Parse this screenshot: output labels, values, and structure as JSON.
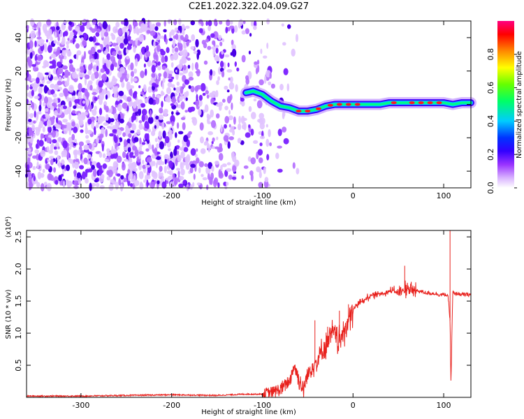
{
  "title": "C2E1.2022.322.04.09.G27",
  "chart_data": [
    {
      "type": "heatmap",
      "xlabel": "Height of straight line (km)",
      "ylabel": "Frequency (Hz)",
      "xlim": [
        -360,
        130
      ],
      "ylim": [
        -50,
        50
      ],
      "x_ticks": [
        -300,
        -200,
        -100,
        0,
        100
      ],
      "y_ticks": [
        -40,
        -20,
        0,
        20,
        40
      ],
      "colorbar": {
        "label": "Normalized spectral amplitude",
        "range": [
          0.0,
          1.0
        ],
        "ticks": [
          0.0,
          0.2,
          0.4,
          0.6,
          0.8
        ],
        "colors": [
          "#ffffff",
          "#b84cff",
          "#4c00ff",
          "#0000ff",
          "#00ccff",
          "#00ff66",
          "#66ff00",
          "#ffff00",
          "#ff8800",
          "#ff0000",
          "#ff0080"
        ]
      },
      "noise_region_x": [
        -360,
        -100
      ],
      "signal_trace": {
        "x": [
          -118,
          -110,
          -100,
          -90,
          -80,
          -70,
          -60,
          -50,
          -40,
          -30,
          -20,
          -10,
          0,
          10,
          20,
          30,
          40,
          50,
          60,
          70,
          80,
          90,
          100,
          110,
          120,
          130
        ],
        "y": [
          7,
          8,
          6,
          2,
          -1,
          -2,
          -4,
          -4,
          -3,
          -1,
          0,
          0,
          0,
          0,
          0,
          0,
          1,
          1,
          1,
          1,
          1,
          1,
          1,
          0,
          1,
          1
        ]
      }
    },
    {
      "type": "line",
      "xlabel": "Height of straight line (km)",
      "ylabel": "SNR (10 * v/v)",
      "y_multiplier": "(x10⁴)",
      "xlim": [
        -360,
        130
      ],
      "ylim": [
        0,
        2.6
      ],
      "x_ticks": [
        -300,
        -200,
        -100,
        0,
        100
      ],
      "y_ticks": [
        0.5,
        1.0,
        1.5,
        2.0,
        2.5
      ],
      "color": "#e8201c",
      "series": [
        {
          "x": [
            -360,
            -300,
            -250,
            -200,
            -150,
            -120,
            -100,
            -90,
            -80,
            -70,
            -65,
            -60,
            -55,
            -50,
            -45,
            -40,
            -35,
            -30,
            -25,
            -20,
            -15,
            -10,
            -5,
            0,
            5,
            10,
            15,
            20,
            25,
            30,
            35,
            40,
            45,
            50,
            55,
            60,
            65,
            70,
            75,
            80,
            85,
            90,
            95,
            100,
            103,
            105,
            107,
            108,
            110,
            112,
            115,
            120,
            130
          ],
          "y": [
            0.02,
            0.02,
            0.03,
            0.04,
            0.03,
            0.05,
            0.05,
            0.08,
            0.12,
            0.25,
            0.5,
            0.3,
            0.1,
            0.35,
            0.5,
            0.55,
            0.7,
            0.8,
            0.95,
            1.0,
            0.85,
            1.05,
            1.2,
            1.35,
            1.45,
            1.5,
            1.55,
            1.58,
            1.6,
            1.62,
            1.63,
            1.65,
            1.66,
            1.64,
            1.65,
            1.7,
            1.65,
            1.66,
            1.65,
            1.63,
            1.62,
            1.62,
            1.6,
            1.6,
            1.6,
            1.55,
            1.2,
            0.2,
            1.65,
            1.6,
            1.62,
            1.6,
            1.6
          ]
        }
      ],
      "spikes": [
        {
          "x": -42,
          "y": 1.2
        },
        {
          "x": -28,
          "y": 1.1
        },
        {
          "x": -15,
          "y": 1.35
        },
        {
          "x": -5,
          "y": 1.45
        },
        {
          "x": 57,
          "y": 2.05
        },
        {
          "x": 107,
          "y": 2.6
        }
      ]
    }
  ]
}
